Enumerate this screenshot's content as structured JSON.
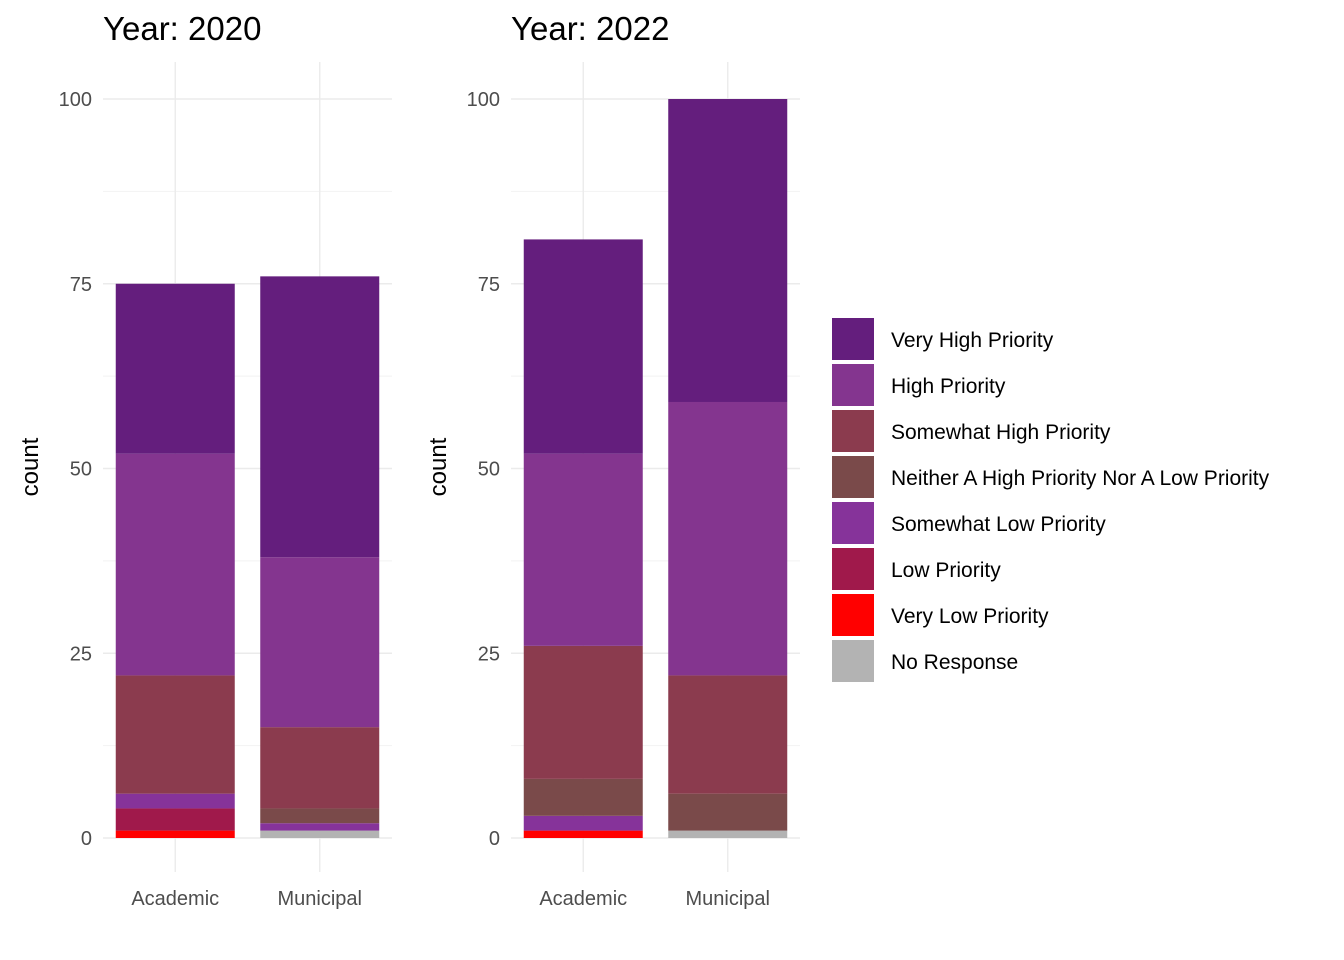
{
  "chart_data": {
    "type": "bar",
    "stacked": true,
    "ylabel": "count",
    "ylim": [
      0,
      100
    ],
    "yticks": [
      0,
      25,
      50,
      75,
      100
    ],
    "categories": [
      "Academic",
      "Municipal"
    ],
    "legend_position": "right",
    "legend": [
      {
        "key": "vhp",
        "label": "Very High Priority",
        "color": "#641e7d"
      },
      {
        "key": "hp",
        "label": "High Priority",
        "color": "#84358f"
      },
      {
        "key": "shp",
        "label": "Somewhat High Priority",
        "color": "#8b3b4e"
      },
      {
        "key": "neither",
        "label": "Neither A High Priority Nor A Low Priority",
        "color": "#7a4a4a"
      },
      {
        "key": "slp",
        "label": "Somewhat Low Priority",
        "color": "#86339a"
      },
      {
        "key": "lp",
        "label": "Low Priority",
        "color": "#a0194b"
      },
      {
        "key": "vlp",
        "label": "Very Low Priority",
        "color": "#ff0000"
      },
      {
        "key": "nr",
        "label": "No Response",
        "color": "#b3b3b3"
      }
    ],
    "stack_order_bottom_to_top": [
      "nr",
      "vlp",
      "lp",
      "slp",
      "neither",
      "shp",
      "hp",
      "vhp"
    ],
    "panels": [
      {
        "title": "Year: 2020",
        "bars": [
          {
            "category": "Academic",
            "values": {
              "nr": 0,
              "vlp": 1,
              "lp": 3,
              "slp": 2,
              "neither": 0,
              "shp": 16,
              "hp": 30,
              "vhp": 23
            }
          },
          {
            "category": "Municipal",
            "values": {
              "nr": 1,
              "vlp": 0,
              "lp": 0,
              "slp": 1,
              "neither": 2,
              "shp": 11,
              "hp": 23,
              "vhp": 38
            }
          }
        ]
      },
      {
        "title": "Year: 2022",
        "bars": [
          {
            "category": "Academic",
            "values": {
              "nr": 0,
              "vlp": 1,
              "lp": 0,
              "slp": 2,
              "neither": 5,
              "shp": 18,
              "hp": 26,
              "vhp": 29
            }
          },
          {
            "category": "Municipal",
            "values": {
              "nr": 1,
              "vlp": 0,
              "lp": 0,
              "slp": 0,
              "neither": 5,
              "shp": 16,
              "hp": 37,
              "vhp": 41
            }
          }
        ]
      }
    ]
  }
}
